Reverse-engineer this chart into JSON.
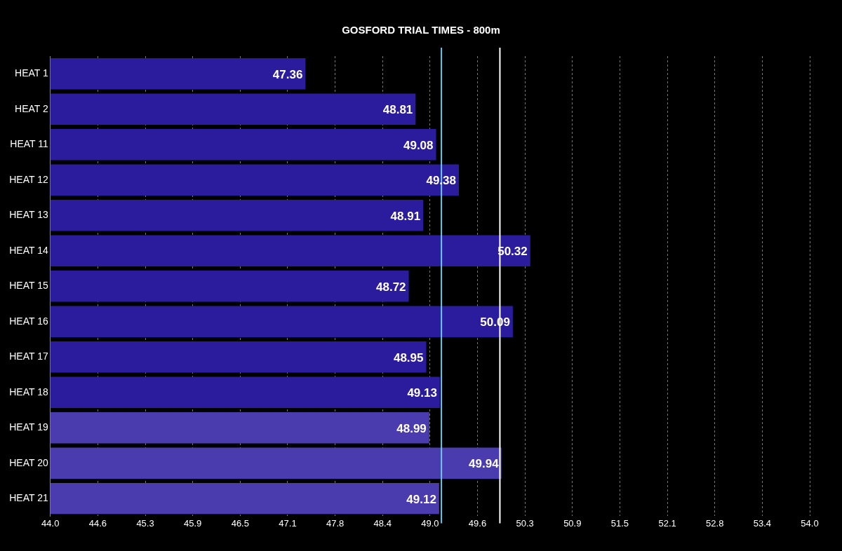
{
  "chart_data": {
    "type": "bar",
    "orientation": "horizontal",
    "title": "GOSFORD TRIAL TIMES - 800m",
    "categories": [
      "HEAT 1",
      "HEAT 2",
      "HEAT 11",
      "HEAT 12",
      "HEAT 13",
      "HEAT 14",
      "HEAT 15",
      "HEAT 16",
      "HEAT 17",
      "HEAT 18",
      "HEAT 19",
      "HEAT 20",
      "HEAT 21"
    ],
    "values": [
      47.36,
      48.81,
      49.08,
      49.38,
      48.91,
      50.32,
      48.72,
      50.09,
      48.95,
      49.13,
      48.99,
      49.94,
      49.12
    ],
    "colors": [
      "#2a1c9c",
      "#2a1c9c",
      "#2a1c9c",
      "#2a1c9c",
      "#2a1c9c",
      "#2a1c9c",
      "#2a1c9c",
      "#2a1c9c",
      "#2a1c9c",
      "#2a1c9c",
      "#4a3cae",
      "#4a3cae",
      "#4a3cae"
    ],
    "data_labels": true,
    "xlim": [
      44,
      54
    ],
    "xticks": [
      {
        "value": 44,
        "label": "44.0"
      },
      {
        "value": 44.625,
        "label": "44.6"
      },
      {
        "value": 45.25,
        "label": "45.3"
      },
      {
        "value": 45.875,
        "label": "45.9"
      },
      {
        "value": 46.5,
        "label": "46.5"
      },
      {
        "value": 47.125,
        "label": "47.1"
      },
      {
        "value": 47.75,
        "label": "47.8"
      },
      {
        "value": 48.375,
        "label": "48.4"
      },
      {
        "value": 49,
        "label": "49.0"
      },
      {
        "value": 49.625,
        "label": "49.6"
      },
      {
        "value": 50.25,
        "label": "50.3"
      },
      {
        "value": 50.875,
        "label": "50.9"
      },
      {
        "value": 51.5,
        "label": "51.5"
      },
      {
        "value": 52.125,
        "label": "52.1"
      },
      {
        "value": 52.75,
        "label": "52.8"
      },
      {
        "value": 53.375,
        "label": "53.4"
      },
      {
        "value": 54,
        "label": "54.0"
      }
    ],
    "grid": "x",
    "legend": false,
    "ref_lines": [
      {
        "axis": "x",
        "value": 49.15,
        "color": "#6ec6e8"
      },
      {
        "axis": "x",
        "value": 49.92,
        "color": "#ffffff"
      }
    ]
  }
}
